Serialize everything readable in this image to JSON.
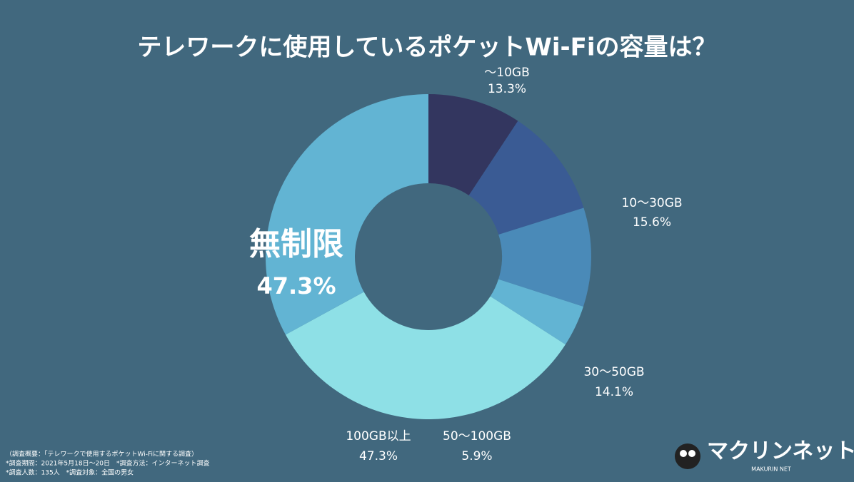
{
  "chart_data": {
    "type": "donut",
    "title": "テレワークに使用しているポケットWi-Fiの容量は？",
    "categories": [
      "〜10GB",
      "10〜30GB",
      "30〜50GB",
      "50〜100GB",
      "100GB以上",
      "無制限"
    ],
    "values": [
      13.3,
      15.6,
      14.1,
      5.9,
      47.3,
      47.3
    ],
    "value_labels": [
      "13.3%",
      "15.6%",
      "14.1%",
      "5.9%",
      "47.3%",
      "47.3%"
    ],
    "colors": [
      "#33365f",
      "#3a5b94",
      "#4a8ab8",
      "#62b4d3",
      "#8ee0e6",
      "#62b4d3"
    ]
  },
  "notes": [
    "（調査概要：「テレワークで使用するポケットWi-Fiに関する調査）",
    "*調査期間：2021年5月18日〜20日　*調査方法：インターネット調査",
    "*調査人数：135人　*調査対象：全国の男女"
  ],
  "logo": {
    "name": "マクリンネット",
    "subtitle": "MAKURIN NET"
  }
}
